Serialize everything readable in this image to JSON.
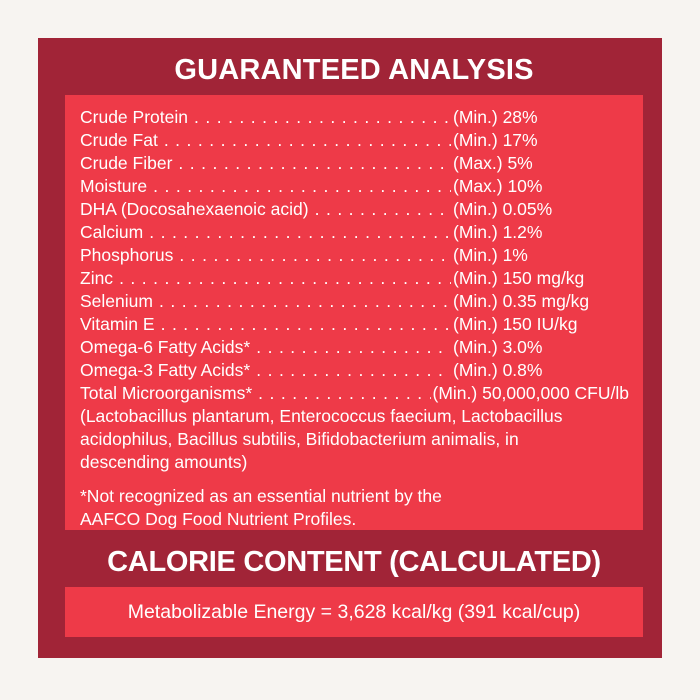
{
  "colors": {
    "background": "#f7f4f1",
    "panel_dark": "#a12437",
    "panel_light": "#ee3a48",
    "text": "#ffffff"
  },
  "guaranteed_analysis": {
    "title": "GUARANTEED ANALYSIS",
    "leader_dot": ".",
    "rows": [
      {
        "label": "Crude Protein",
        "value": "(Min.) 28%"
      },
      {
        "label": "Crude Fat",
        "value": "(Min.) 17%"
      },
      {
        "label": "Crude Fiber",
        "value": "(Max.) 5%"
      },
      {
        "label": "Moisture",
        "value": "(Max.) 10%"
      },
      {
        "label": "DHA (Docosahexaenoic acid)",
        "value": "(Min.) 0.05%"
      },
      {
        "label": "Calcium",
        "value": "(Min.) 1.2%"
      },
      {
        "label": "Phosphorus",
        "value": "(Min.) 1%"
      },
      {
        "label": "Zinc",
        "value": "(Min.) 150 mg/kg"
      },
      {
        "label": "Selenium",
        "value": "(Min.) 0.35 mg/kg"
      },
      {
        "label": "Vitamin E",
        "value": "(Min.) 150 IU/kg"
      },
      {
        "label": "Omega-6 Fatty Acids*",
        "value": "(Min.) 3.0%"
      },
      {
        "label": "Omega-3 Fatty Acids*",
        "value": "(Min.) 0.8%"
      },
      {
        "label": "Total Microorganisms*",
        "value": "(Min.) 50,000,000 CFU/lb",
        "wide": true
      }
    ],
    "microorganisms_note": "(Lactobacillus plantarum, Enterococcus faecium, Lactobacillus\nacidophilus, Bacillus subtilis, Bifidobacterium animalis, in\ndescending amounts)",
    "footnote": "*Not recognized as an essential nutrient by the\nAAFCO Dog Food Nutrient Profiles."
  },
  "calorie_content": {
    "title": "CALORIE CONTENT (CALCULATED)",
    "metabolizable_energy": "Metabolizable Energy = 3,628 kcal/kg (391 kcal/cup)"
  }
}
